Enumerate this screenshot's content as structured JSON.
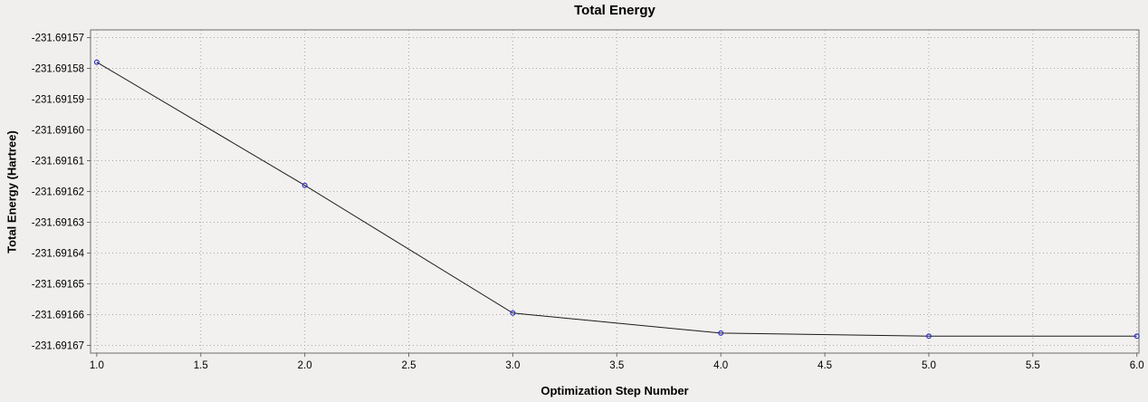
{
  "chart_data": {
    "type": "line",
    "title": "Total Energy",
    "xlabel": "Optimization Step Number",
    "ylabel": "Total Energy (Hartree)",
    "x": [
      1,
      2,
      3,
      4,
      5,
      6
    ],
    "y": [
      -231.691578,
      -231.691618,
      -231.6916595,
      -231.691666,
      -231.691667,
      -231.691667
    ],
    "xticks": [
      1.0,
      1.5,
      2.0,
      2.5,
      3.0,
      3.5,
      4.0,
      4.5,
      5.0,
      5.5,
      6.0
    ],
    "xtick_labels": [
      "1.0",
      "1.5",
      "2.0",
      "2.5",
      "3.0",
      "3.5",
      "4.0",
      "4.5",
      "5.0",
      "5.5",
      "6.0"
    ],
    "yticks": [
      -231.69157,
      -231.69158,
      -231.69159,
      -231.6916,
      -231.69161,
      -231.69162,
      -231.69163,
      -231.69164,
      -231.69165,
      -231.69166,
      -231.69167
    ],
    "ytick_labels": [
      "-231.69157",
      "-231.69158",
      "-231.69159",
      "-231.69160",
      "-231.69161",
      "-231.69162",
      "-231.69163",
      "-231.69164",
      "-231.69165",
      "-231.69166",
      "-231.69167"
    ],
    "xlim": [
      0.97,
      6.01
    ],
    "ylim": [
      -231.6916725,
      -231.6915675
    ],
    "grid": true,
    "legend": "none",
    "colors": {
      "line": "#1a1a1a",
      "marker": "#3030c8",
      "grid": "#a8a8a8",
      "frame": "#6e6e6e",
      "canvas": "#f2f1ef",
      "background": "#f0efed"
    }
  }
}
